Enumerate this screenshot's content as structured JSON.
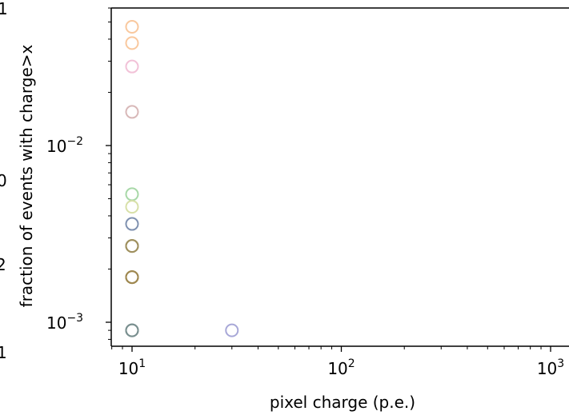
{
  "chart_data": {
    "type": "scatter",
    "title": "",
    "xlabel": "pixel charge (p.e.)",
    "ylabel": "fraction of events with charge>x",
    "xscale": "log",
    "yscale": "log",
    "xlim": [
      7.9,
      1150
    ],
    "ylim": [
      0.00078,
      0.06
    ],
    "grid": false,
    "legend": "none",
    "x_ticks": [
      {
        "value": 10,
        "label_base": "10",
        "label_exp": "1"
      },
      {
        "value": 100,
        "label_base": "10",
        "label_exp": "2"
      },
      {
        "value": 1000,
        "label_base": "10",
        "label_exp": "3"
      }
    ],
    "y_ticks": [
      {
        "value": 0.01,
        "label_base": "10",
        "label_exp": "−2"
      },
      {
        "value": 0.001,
        "label_base": "10",
        "label_exp": "−3"
      }
    ],
    "marker": "open-circle",
    "points": [
      {
        "x": 10,
        "y": 0.047,
        "color": "#f9c89e"
      },
      {
        "x": 10,
        "y": 0.038,
        "color": "#f9c89e"
      },
      {
        "x": 10,
        "y": 0.028,
        "color": "#f2c2d8"
      },
      {
        "x": 10,
        "y": 0.0155,
        "color": "#d8b8b8"
      },
      {
        "x": 10,
        "y": 0.0053,
        "color": "#a8d8a8"
      },
      {
        "x": 10,
        "y": 0.0045,
        "color": "#d8e0a8"
      },
      {
        "x": 10,
        "y": 0.0036,
        "color": "#7f91b0"
      },
      {
        "x": 10,
        "y": 0.0027,
        "color": "#8a8a3a"
      },
      {
        "x": 10,
        "y": 0.0027,
        "color": "#a09060"
      },
      {
        "x": 10,
        "y": 0.0018,
        "color": "#7a7a40"
      },
      {
        "x": 10,
        "y": 0.0018,
        "color": "#a08850"
      },
      {
        "x": 10,
        "y": 0.0009,
        "color": "#5a7070"
      },
      {
        "x": 10,
        "y": 0.0009,
        "color": "#7a9090"
      },
      {
        "x": 30,
        "y": 0.0009,
        "color": "#a8a8d8"
      }
    ],
    "left_edge_clipped_text": [
      "1",
      "0",
      "2",
      "1"
    ]
  }
}
